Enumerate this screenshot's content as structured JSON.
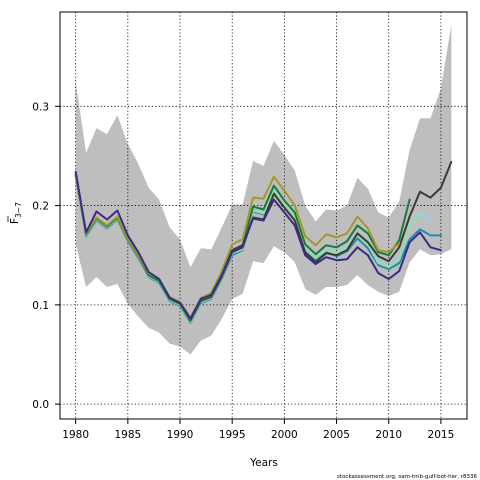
{
  "chart_data": {
    "type": "line",
    "title": "",
    "xlabel": "Years",
    "ylabel_main": "F",
    "ylabel_sub": "3−7",
    "xlim": [
      1978.5,
      2017.5
    ],
    "ylim": [
      -0.015,
      0.395
    ],
    "xticks": [
      1980,
      1985,
      1990,
      1995,
      2000,
      2005,
      2010,
      2015
    ],
    "yticks": [
      0.0,
      0.1,
      0.2,
      0.3
    ],
    "ytick_labels": [
      "0.0",
      "0.1",
      "0.2",
      "0.3"
    ],
    "grid": true,
    "confidence_band": {
      "x": [
        1980,
        1981,
        1982,
        1983,
        1984,
        1985,
        1986,
        1987,
        1988,
        1989,
        1990,
        1991,
        1992,
        1993,
        1994,
        1995,
        1996,
        1997,
        1998,
        1999,
        2000,
        2001,
        2002,
        2003,
        2004,
        2005,
        2006,
        2007,
        2008,
        2009,
        2010,
        2011,
        2012,
        2013,
        2014,
        2015,
        2016
      ],
      "upper": [
        0.325,
        0.253,
        0.278,
        0.272,
        0.291,
        0.262,
        0.242,
        0.218,
        0.206,
        0.178,
        0.166,
        0.138,
        0.157,
        0.156,
        0.178,
        0.201,
        0.201,
        0.245,
        0.24,
        0.265,
        0.251,
        0.235,
        0.2,
        0.184,
        0.196,
        0.195,
        0.2,
        0.228,
        0.217,
        0.193,
        0.188,
        0.204,
        0.256,
        0.288,
        0.288,
        0.318,
        0.382
      ],
      "lower": [
        0.161,
        0.118,
        0.128,
        0.118,
        0.121,
        0.101,
        0.088,
        0.077,
        0.072,
        0.061,
        0.058,
        0.05,
        0.064,
        0.069,
        0.086,
        0.106,
        0.111,
        0.144,
        0.142,
        0.159,
        0.153,
        0.143,
        0.116,
        0.11,
        0.118,
        0.118,
        0.12,
        0.13,
        0.12,
        0.113,
        0.109,
        0.113,
        0.143,
        0.156,
        0.15,
        0.151,
        0.156
      ]
    },
    "series": [
      {
        "color": "#1d8db5",
        "values": [
          0.23,
          0.169,
          0.185,
          0.177,
          0.186,
          0.164,
          0.147,
          0.128,
          0.122,
          0.104,
          0.099,
          0.082,
          0.102,
          0.106,
          0.126,
          0.15,
          0.155,
          0.194,
          0.191,
          0.214,
          0.199,
          0.187,
          0.154,
          0.145,
          0.153,
          0.149,
          0.154,
          0.167,
          0.157,
          0.14,
          0.136,
          0.142,
          0.166,
          0.176,
          0.17,
          0.17
        ]
      },
      {
        "color": "#8fd3e8",
        "values": [
          0.23,
          0.17,
          0.186,
          0.178,
          0.187,
          0.165,
          0.148,
          0.129,
          0.123,
          0.105,
          0.1,
          0.083,
          0.103,
          0.107,
          0.127,
          0.152,
          0.157,
          0.196,
          0.193,
          0.217,
          0.202,
          0.19,
          0.157,
          0.148,
          0.156,
          0.153,
          0.158,
          0.172,
          0.163,
          0.144,
          0.139,
          0.147,
          0.18,
          0.192,
          0.186
        ]
      },
      {
        "color": "#a1d99b",
        "values": [
          0.23,
          0.17,
          0.186,
          0.178,
          0.187,
          0.165,
          0.148,
          0.129,
          0.123,
          0.105,
          0.1,
          0.083,
          0.103,
          0.107,
          0.127,
          0.152,
          0.156,
          0.195,
          0.192,
          0.215,
          0.201,
          0.188,
          0.156,
          0.147,
          0.155,
          0.152,
          0.157,
          0.17,
          0.161,
          0.142,
          0.138,
          0.145,
          0.178,
          0.19
        ]
      },
      {
        "color": "#3a3a3a",
        "values": [
          0.231,
          0.171,
          0.187,
          0.179,
          0.188,
          0.166,
          0.149,
          0.13,
          0.124,
          0.106,
          0.101,
          0.084,
          0.104,
          0.108,
          0.128,
          0.153,
          0.158,
          0.188,
          0.186,
          0.212,
          0.198,
          0.185,
          0.153,
          0.143,
          0.152,
          0.15,
          0.155,
          0.172,
          0.163,
          0.149,
          0.144,
          0.158,
          0.189,
          0.214,
          0.208,
          0.218,
          0.244
        ]
      },
      {
        "color": "#1b7a3a",
        "values": [
          0.231,
          0.171,
          0.187,
          0.179,
          0.188,
          0.166,
          0.149,
          0.13,
          0.124,
          0.106,
          0.101,
          0.085,
          0.105,
          0.109,
          0.129,
          0.155,
          0.16,
          0.199,
          0.196,
          0.22,
          0.205,
          0.193,
          0.161,
          0.151,
          0.16,
          0.158,
          0.164,
          0.18,
          0.172,
          0.153,
          0.15,
          0.165,
          0.206
        ]
      },
      {
        "color": "#a09a2a",
        "values": [
          0.231,
          0.172,
          0.188,
          0.18,
          0.189,
          0.167,
          0.15,
          0.132,
          0.126,
          0.108,
          0.103,
          0.087,
          0.107,
          0.112,
          0.134,
          0.161,
          0.166,
          0.208,
          0.207,
          0.229,
          0.215,
          0.2,
          0.169,
          0.16,
          0.171,
          0.168,
          0.172,
          0.189,
          0.177,
          0.155,
          0.153,
          0.162
        ]
      },
      {
        "color": "#3b2a86",
        "values": [
          0.234,
          0.173,
          0.194,
          0.186,
          0.195,
          0.17,
          0.153,
          0.133,
          0.126,
          0.107,
          0.102,
          0.086,
          0.106,
          0.11,
          0.13,
          0.155,
          0.16,
          0.187,
          0.185,
          0.206,
          0.193,
          0.18,
          0.15,
          0.141,
          0.148,
          0.145,
          0.146,
          0.158,
          0.15,
          0.132,
          0.126,
          0.134,
          0.163,
          0.173,
          0.158,
          0.155
        ]
      }
    ]
  },
  "credit": "stockassessment.org, sam-tmb-gulf-bot-her, r8336"
}
